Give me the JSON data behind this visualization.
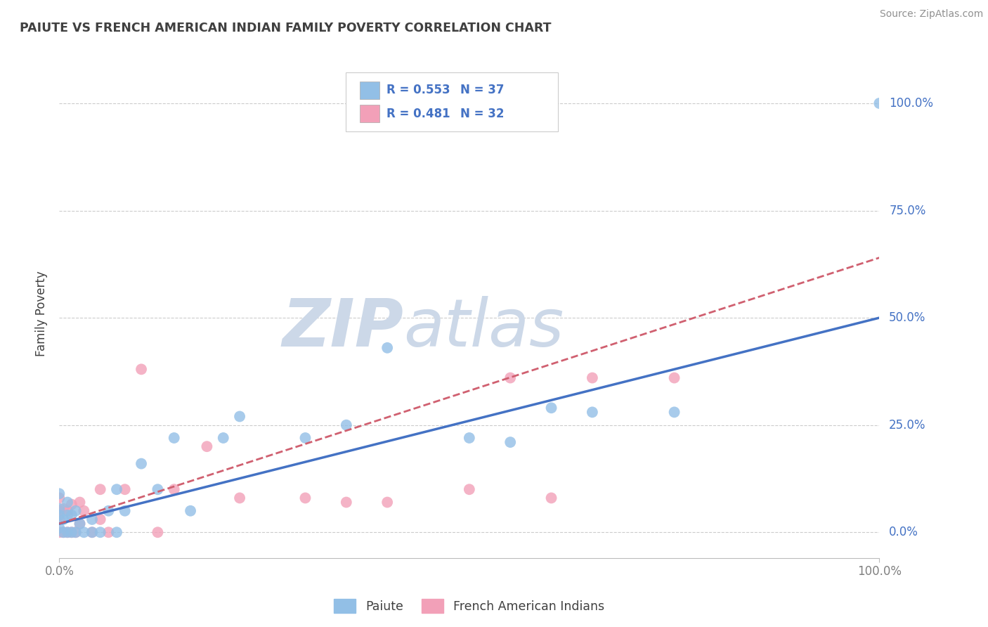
{
  "title": "PAIUTE VS FRENCH AMERICAN INDIAN FAMILY POVERTY CORRELATION CHART",
  "source": "Source: ZipAtlas.com",
  "ylabel": "Family Poverty",
  "xlim": [
    0.0,
    1.0
  ],
  "ylim": [
    -0.06,
    1.08
  ],
  "xtick_positions": [
    0.0,
    1.0
  ],
  "xtick_labels": [
    "0.0%",
    "100.0%"
  ],
  "ytick_positions": [
    0.0,
    0.25,
    0.5,
    0.75,
    1.0
  ],
  "ytick_labels": [
    "0.0%",
    "25.0%",
    "50.0%",
    "75.0%",
    "100.0%"
  ],
  "legend_label1": "Paiute",
  "legend_label2": "French American Indians",
  "R1": "0.553",
  "N1": "37",
  "R2": "0.481",
  "N2": "32",
  "paiute_color": "#92bfe6",
  "french_color": "#f2a0b8",
  "paiute_line_color": "#4472c4",
  "french_line_color": "#d06070",
  "background_color": "#ffffff",
  "grid_color": "#cccccc",
  "title_color": "#404040",
  "watermark_color": "#ccd8e8",
  "paiute_line_intercept": 0.02,
  "paiute_line_slope": 0.48,
  "french_line_intercept": 0.02,
  "french_line_slope": 0.62,
  "paiute_x": [
    0.0,
    0.0,
    0.0,
    0.0,
    0.005,
    0.005,
    0.01,
    0.01,
    0.01,
    0.015,
    0.015,
    0.02,
    0.02,
    0.025,
    0.03,
    0.04,
    0.04,
    0.05,
    0.06,
    0.07,
    0.07,
    0.08,
    0.1,
    0.12,
    0.14,
    0.16,
    0.2,
    0.22,
    0.3,
    0.35,
    0.4,
    0.5,
    0.55,
    0.6,
    0.65,
    0.75,
    1.0
  ],
  "paiute_y": [
    0.01,
    0.04,
    0.055,
    0.09,
    0.0,
    0.03,
    0.0,
    0.04,
    0.07,
    0.0,
    0.04,
    0.0,
    0.05,
    0.02,
    0.0,
    0.0,
    0.03,
    0.0,
    0.05,
    0.0,
    0.1,
    0.05,
    0.16,
    0.1,
    0.22,
    0.05,
    0.22,
    0.27,
    0.22,
    0.25,
    0.43,
    0.22,
    0.21,
    0.29,
    0.28,
    0.28,
    1.0
  ],
  "french_x": [
    0.0,
    0.0,
    0.0,
    0.0,
    0.005,
    0.005,
    0.01,
    0.01,
    0.015,
    0.015,
    0.02,
    0.025,
    0.025,
    0.03,
    0.04,
    0.05,
    0.05,
    0.06,
    0.08,
    0.1,
    0.12,
    0.14,
    0.18,
    0.22,
    0.3,
    0.35,
    0.4,
    0.5,
    0.55,
    0.6,
    0.65,
    0.75
  ],
  "french_y": [
    0.0,
    0.03,
    0.05,
    0.08,
    0.0,
    0.055,
    0.0,
    0.05,
    0.0,
    0.065,
    0.0,
    0.02,
    0.07,
    0.05,
    0.0,
    0.03,
    0.1,
    0.0,
    0.1,
    0.38,
    0.0,
    0.1,
    0.2,
    0.08,
    0.08,
    0.07,
    0.07,
    0.1,
    0.36,
    0.08,
    0.36,
    0.36
  ]
}
